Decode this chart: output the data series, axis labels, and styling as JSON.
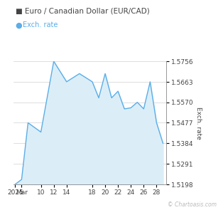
{
  "title": "Euro / Canadian Dollar (EUR/CAD)",
  "legend_label": "Exch. rate",
  "ylabel": "Exch. rate",
  "watermark": "© Chartoasis.com",
  "x_labels": [
    "2025",
    "Mar",
    "10",
    "12",
    "14",
    "18",
    "20",
    "22",
    "24",
    "26",
    "28"
  ],
  "x_positions": [
    0,
    1,
    4,
    6,
    8,
    12,
    14,
    16,
    18,
    20,
    22
  ],
  "yticks": [
    1.5198,
    1.5291,
    1.5384,
    1.5477,
    1.557,
    1.5663,
    1.5756
  ],
  "ylim": [
    1.5198,
    1.5756
  ],
  "xlim": [
    -0.3,
    23.5
  ],
  "data_x": [
    0,
    1,
    2,
    4,
    6,
    8,
    10,
    12,
    13,
    14,
    15,
    16,
    17,
    18,
    19,
    20,
    21,
    22,
    23
  ],
  "data_y": [
    1.5198,
    1.522,
    1.5477,
    1.5435,
    1.5756,
    1.5663,
    1.57,
    1.5663,
    1.559,
    1.57,
    1.559,
    1.562,
    1.554,
    1.5545,
    1.557,
    1.554,
    1.5663,
    1.5477,
    1.5384
  ],
  "line_color": "#5baee8",
  "fill_color": "#dbeef8",
  "bg_color": "#ffffff",
  "grid_color": "#d0d0d0",
  "font_color": "#444444",
  "watermark_color": "#bbbbbb",
  "title_fontsize": 7.5,
  "legend_fontsize": 7.0,
  "tick_fontsize": 6.5,
  "ylabel_fontsize": 6.5,
  "watermark_fontsize": 5.5
}
